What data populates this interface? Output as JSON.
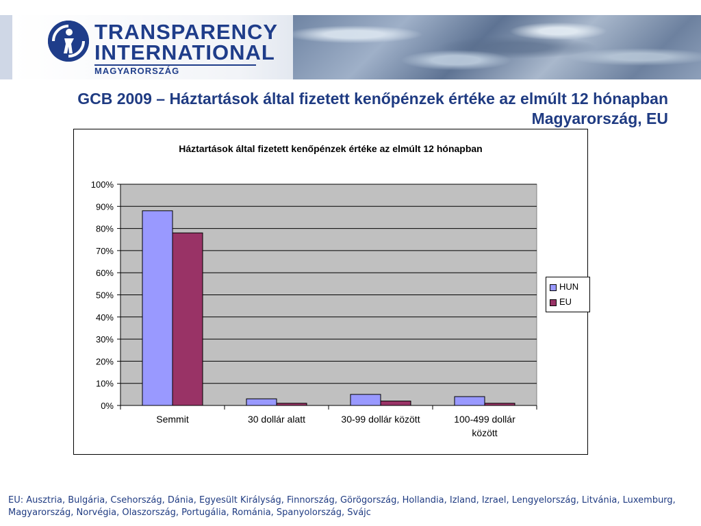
{
  "banner": {
    "logo_line1": "TRANSPARENCY",
    "logo_line2": "INTERNATIONAL",
    "logo_line3": "MAGYARORSZÁG"
  },
  "slide": {
    "title": "GCB 2009 – Háztartások által fizetett kenőpénzek értéke az elmúlt 12 hónapban Magyarország, EU",
    "footnote": "EU: Ausztria, Bulgária, Csehország, Dánia, Egyesült Királyság, Finnország, Görögország, Hollandia, Izland, Izrael, Lengyelország, Litvánia, Luxemburg, Magyarország, Norvégia, Olaszország,  Portugália, Románia, Spanyolország, Svájc"
  },
  "chart_data": {
    "type": "bar",
    "title": "Háztartások által fizetett kenőpénzek értéke az elmúlt 12 hónapban",
    "categories": [
      "Semmit",
      "30 dollár alatt",
      "30-99 dollár között",
      "100-499 dollár között"
    ],
    "series": [
      {
        "name": "HUN",
        "color": "#9999ff",
        "values": [
          88,
          3,
          5,
          4
        ]
      },
      {
        "name": "EU",
        "color": "#993366",
        "values": [
          78,
          1,
          2,
          1
        ]
      }
    ],
    "ylim": [
      0,
      100
    ],
    "yticks": [
      "0%",
      "10%",
      "20%",
      "30%",
      "40%",
      "50%",
      "60%",
      "70%",
      "80%",
      "90%",
      "100%"
    ],
    "plot_background": "#c0c0c0",
    "grid": true,
    "legend_position": "right"
  }
}
